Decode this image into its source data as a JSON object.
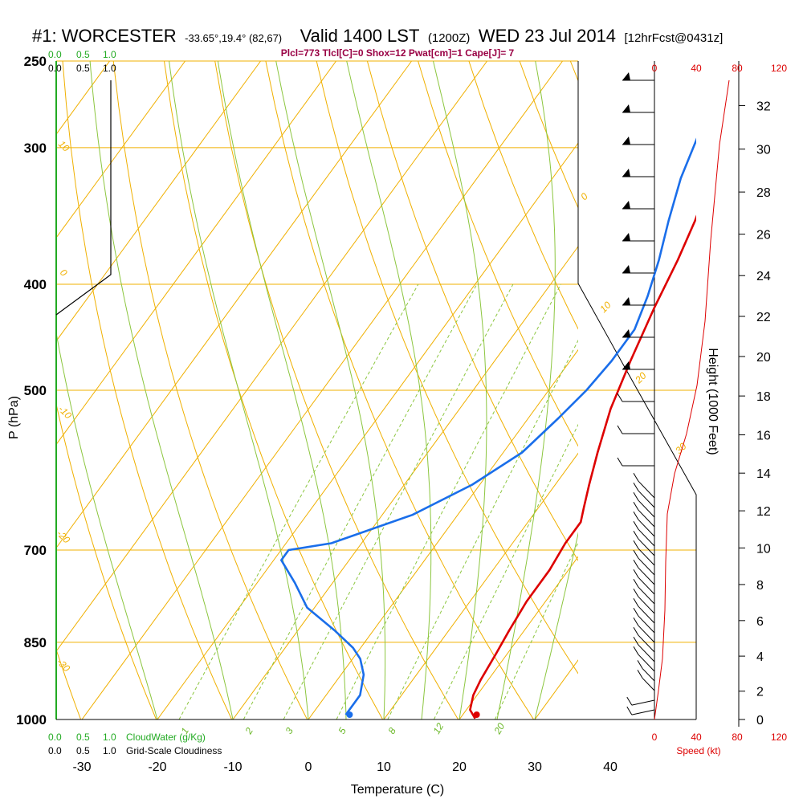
{
  "chart_data": {
    "type": "line",
    "title": {
      "station": "#1: WORCESTER",
      "location": "-33.65°,19.4° (82,67)",
      "valid": "Valid 1400 LST",
      "utc": "(1200Z)",
      "date": "WED 23 Jul 2014",
      "forecast": "[12hrFcst@0431z]"
    },
    "subtitle": "Plcl=773 Tlcl[C]=0 Shox=12 Pwat[cm]=1 Cape[J]= 7",
    "xlabel": "Temperature (C)",
    "ylabel": "P (hPa)",
    "y2label": "Height (1000 Feet)",
    "x_ticks": [
      "-30",
      "-20",
      "-10",
      "0",
      "10",
      "20",
      "30",
      "40"
    ],
    "p_ticks": [
      "250",
      "300",
      "400",
      "500",
      "700",
      "850",
      "1000"
    ],
    "height_ticks": [
      "0",
      "2",
      "4",
      "6",
      "8",
      "10",
      "12",
      "14",
      "16",
      "18",
      "20",
      "22",
      "24",
      "26",
      "28",
      "30",
      "32"
    ],
    "temperature_profile": {
      "color": "#dd0000",
      "points": [
        [
          -2.5,
          262
        ],
        [
          -1,
          290
        ],
        [
          1,
          320
        ],
        [
          3,
          350
        ],
        [
          4.5,
          380
        ],
        [
          6,
          420
        ],
        [
          8,
          470
        ],
        [
          10,
          520
        ],
        [
          12.5,
          570
        ],
        [
          14.5,
          610
        ],
        [
          16,
          640
        ],
        [
          17,
          660
        ],
        [
          17,
          690
        ],
        [
          17.5,
          730
        ],
        [
          17.5,
          780
        ],
        [
          18,
          830
        ],
        [
          18.5,
          870
        ],
        [
          19,
          920
        ],
        [
          19.5,
          950
        ],
        [
          20.5,
          980
        ],
        [
          22,
          998
        ]
      ]
    },
    "dewpoint_profile": {
      "color": "#1a6eea",
      "points": [
        [
          -6.5,
          262
        ],
        [
          -5,
          290
        ],
        [
          -3,
          320
        ],
        [
          -0.5,
          350
        ],
        [
          2,
          380
        ],
        [
          4,
          410
        ],
        [
          5.5,
          440
        ],
        [
          5.5,
          470
        ],
        [
          5,
          500
        ],
        [
          4,
          530
        ],
        [
          2.5,
          570
        ],
        [
          -1,
          610
        ],
        [
          -6,
          650
        ],
        [
          -14,
          690
        ],
        [
          -19,
          700
        ],
        [
          -19,
          715
        ],
        [
          -15,
          750
        ],
        [
          -11,
          790
        ],
        [
          -5,
          830
        ],
        [
          -1,
          860
        ],
        [
          1,
          880
        ],
        [
          3,
          910
        ],
        [
          4.5,
          950
        ],
        [
          4.5,
          990
        ]
      ]
    },
    "surface_temperature": 22.3,
    "surface_dewpoint": 6,
    "cloud_water_scale": {
      "label": "CloudWater (g/Kg)",
      "ticks": [
        "0.0",
        "0.5",
        "1.0"
      ]
    },
    "cloudiness_scale": {
      "label": "Grid-Scale Cloudiness",
      "ticks": [
        "0.0",
        "0.5",
        "1.0"
      ]
    },
    "speed_scale": {
      "label": "Speed (kt)",
      "ticks": [
        "0",
        "40",
        "80",
        "120"
      ]
    },
    "dry_adiabat_labels": [
      "10",
      "0",
      "-10",
      "-20",
      "-30",
      "0",
      "10",
      "20",
      "30"
    ],
    "mixing_ratio_labels": [
      "1",
      "2",
      "3",
      "5",
      "8",
      "12",
      "20"
    ],
    "x_range": [
      -33,
      36
    ],
    "p_range": [
      250,
      1000
    ],
    "y_scale": "log",
    "colors": {
      "isobar": "#f0b000",
      "isotherm": "#f0b000",
      "dry_adiabat": "#f0b000",
      "moist_adiabat": "#8cc63f",
      "mixing_ratio": "#8cc63f",
      "cloud_scale": "#22aa22",
      "speed": "#dd0000",
      "subtitle": "#990044"
    }
  }
}
